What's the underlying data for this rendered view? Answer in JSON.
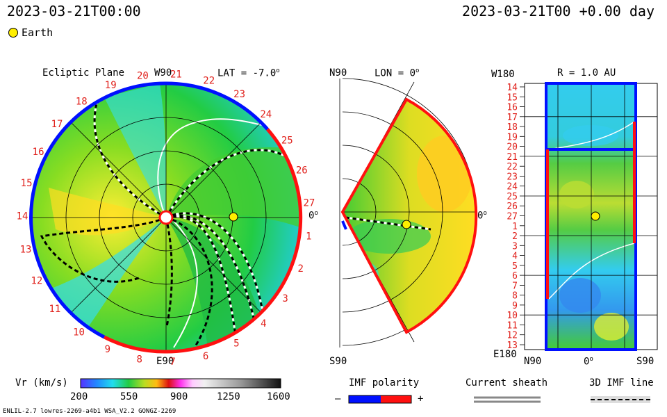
{
  "header": {
    "left_datetime": "2023-03-21T00:00",
    "right_datetime": "2023-03-21T00 +0.00 day"
  },
  "legend": {
    "earth_label": "Earth",
    "earth_color": "#ffee00"
  },
  "ecliptic": {
    "title": "Ecliptic Plane",
    "w90": "W90",
    "lat": "LAT = -7.0",
    "lat_deg": "o",
    "e90": "E90",
    "zero": "0",
    "zero_deg": "o",
    "carrington_labels": [
      "20",
      "21",
      "22",
      "23",
      "24",
      "25",
      "26",
      "27",
      "1",
      "2",
      "3",
      "4",
      "5",
      "6",
      "7",
      "8",
      "9",
      "10",
      "11",
      "12",
      "13",
      "14",
      "15",
      "16",
      "17",
      "18",
      "19"
    ]
  },
  "meridional": {
    "n90": "N90",
    "lon": "LON = 0",
    "lon_deg": "o",
    "s90": "S90",
    "zero": "0",
    "zero_deg": "o"
  },
  "synoptic": {
    "w180": "W180",
    "r": "R = 1.0 AU",
    "e180": "E180",
    "bottom_left": "N90",
    "bottom_mid": "0",
    "bottom_mid_deg": "o",
    "bottom_right": "S90",
    "row_labels": [
      "14",
      "15",
      "16",
      "17",
      "18",
      "19",
      "20",
      "21",
      "22",
      "23",
      "24",
      "25",
      "26",
      "27",
      "1",
      "2",
      "3",
      "4",
      "5",
      "6",
      "7",
      "8",
      "9",
      "10",
      "11",
      "12",
      "13"
    ]
  },
  "colorbar": {
    "label": "Vr (km/s)",
    "ticks": [
      "200",
      "550",
      "900",
      "1250",
      "1600"
    ]
  },
  "imf": {
    "title": "IMF polarity",
    "minus": "–",
    "plus": "+",
    "neg_color": "#0010ff",
    "pos_color": "#ff1010"
  },
  "sheath": {
    "title": "Current sheath"
  },
  "imf3d": {
    "title": "3D IMF line"
  },
  "footer": {
    "model": "ENLIL-2.7 lowres-2269-a4b1 WSA_V2.2 GONGZ-2269"
  }
}
